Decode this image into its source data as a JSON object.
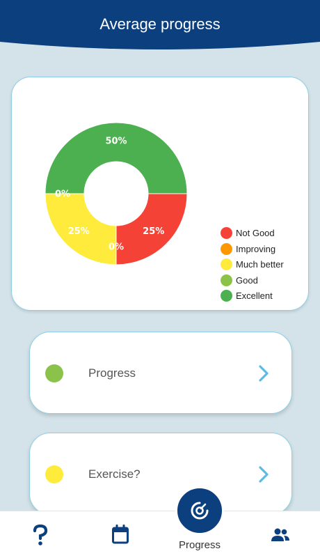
{
  "header": {
    "title": "Average progress"
  },
  "chart_data": {
    "type": "pie",
    "categories": [
      "Not Good",
      "Improving",
      "Much better",
      "Good",
      "Excellent"
    ],
    "values": [
      25,
      0,
      25,
      0,
      50
    ],
    "value_labels": [
      "25%",
      "0%",
      "25%",
      "0%",
      "50%"
    ],
    "colors": [
      "#f44336",
      "#ff9800",
      "#ffeb3b",
      "#8bc34a",
      "#4caf50"
    ],
    "donut": true,
    "legend_position": "bottom-right"
  },
  "cards": [
    {
      "label": "Progress",
      "dot_color": "#8bc34a"
    },
    {
      "label": "Exercise?",
      "dot_color": "#ffeb3b"
    }
  ],
  "bottom_nav": {
    "active_label": "Progress",
    "tabs": [
      "help-icon",
      "calendar-icon",
      "progress-icon",
      "people-icon"
    ]
  },
  "theme": {
    "primary": "#0c3f7d",
    "accent": "#5bbbe0"
  }
}
